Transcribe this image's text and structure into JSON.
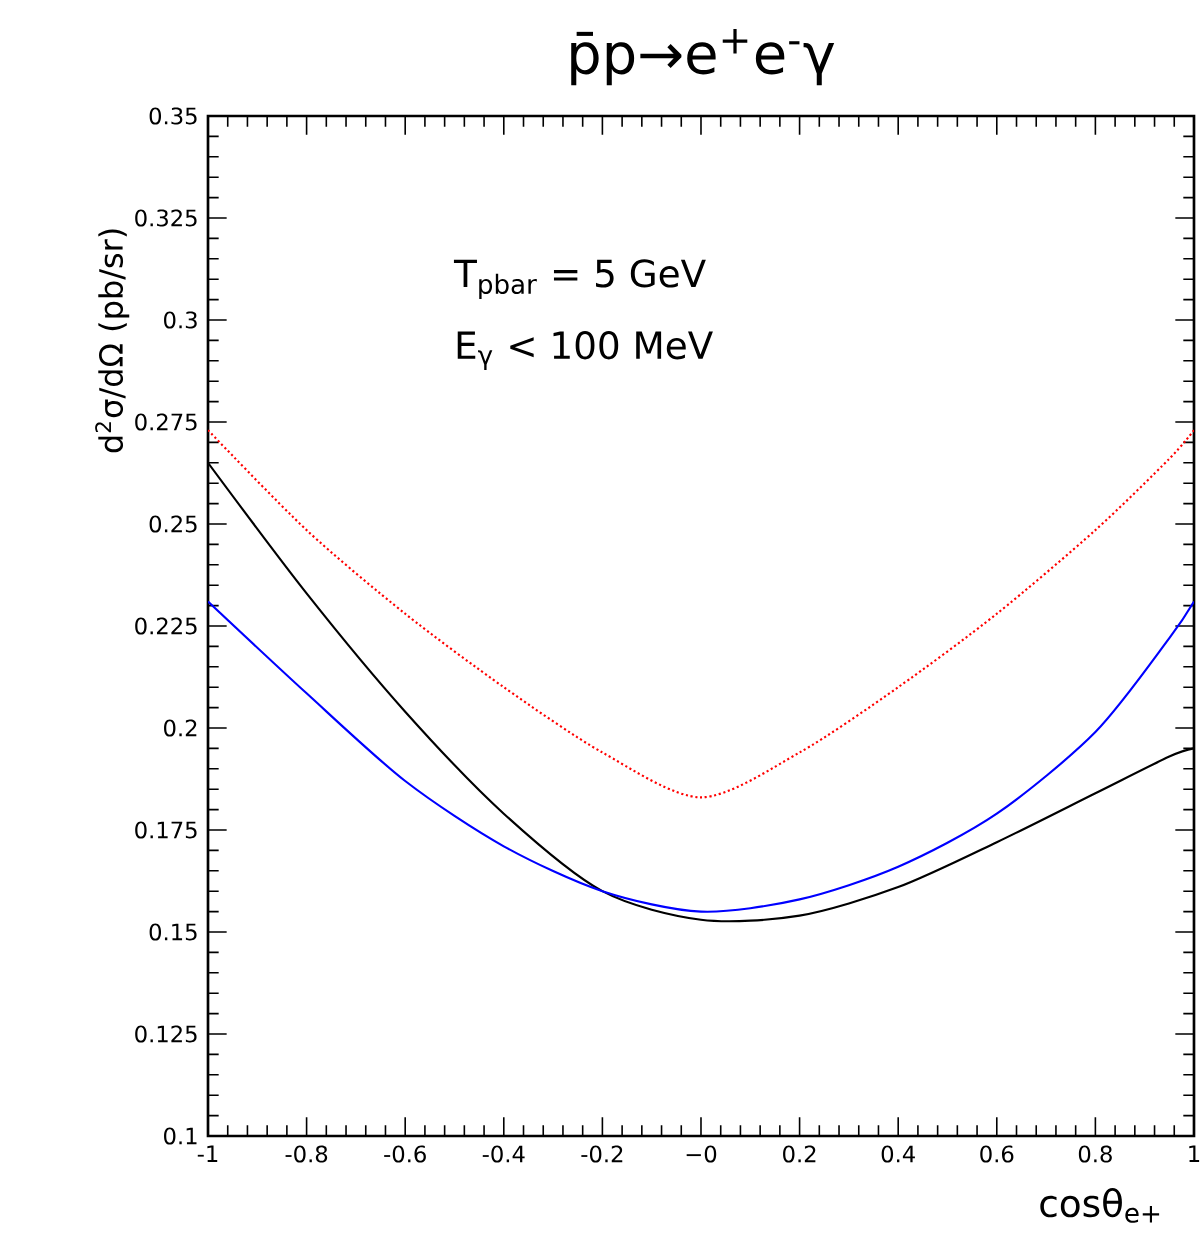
{
  "chart_data": {
    "type": "line",
    "title": "p̄p→e$^{+}$e$^{-}$γ",
    "xlabel": "cosθ$_{e+}$",
    "ylabel": "d$^{2}$σ/dΩ   (pb/sr)",
    "annotations": [
      "T$_{pbar}$ = 5 GeV",
      "E$_{γ}$ < 100 MeV"
    ],
    "x": [
      -1,
      -0.8,
      -0.6,
      -0.4,
      -0.2,
      0,
      0.2,
      0.4,
      0.6,
      0.8,
      0.95,
      1
    ],
    "series": [
      {
        "color": "#000000",
        "line_style": "solid",
        "values": [
          0.265,
          0.233,
          0.204,
          0.179,
          0.16,
          0.153,
          0.154,
          0.161,
          0.172,
          0.184,
          0.193,
          0.195
        ]
      },
      {
        "color": "#0000ff",
        "line_style": "solid",
        "values": [
          0.231,
          0.2085,
          0.187,
          0.171,
          0.16,
          0.155,
          0.158,
          0.166,
          0.179,
          0.199,
          0.222,
          0.231
        ]
      },
      {
        "color": "#ff0000",
        "line_style": "dotted",
        "values": [
          0.273,
          0.2485,
          0.228,
          0.21,
          0.194,
          0.183,
          0.194,
          0.21,
          0.228,
          0.2485,
          0.266,
          0.273
        ]
      }
    ],
    "xlim": [
      -1,
      1
    ],
    "ylim": [
      0.1,
      0.35
    ],
    "xticks": [
      -1,
      -0.8,
      -0.6,
      -0.4,
      -0.2,
      {
        "value": 0,
        "label": "−0"
      },
      0.2,
      0.4,
      0.6,
      0.8,
      1
    ],
    "yticks": [
      0.1,
      0.125,
      0.15,
      0.175,
      0.2,
      0.225,
      0.25,
      0.275,
      0.3,
      0.325,
      0.35
    ],
    "grid": false
  }
}
